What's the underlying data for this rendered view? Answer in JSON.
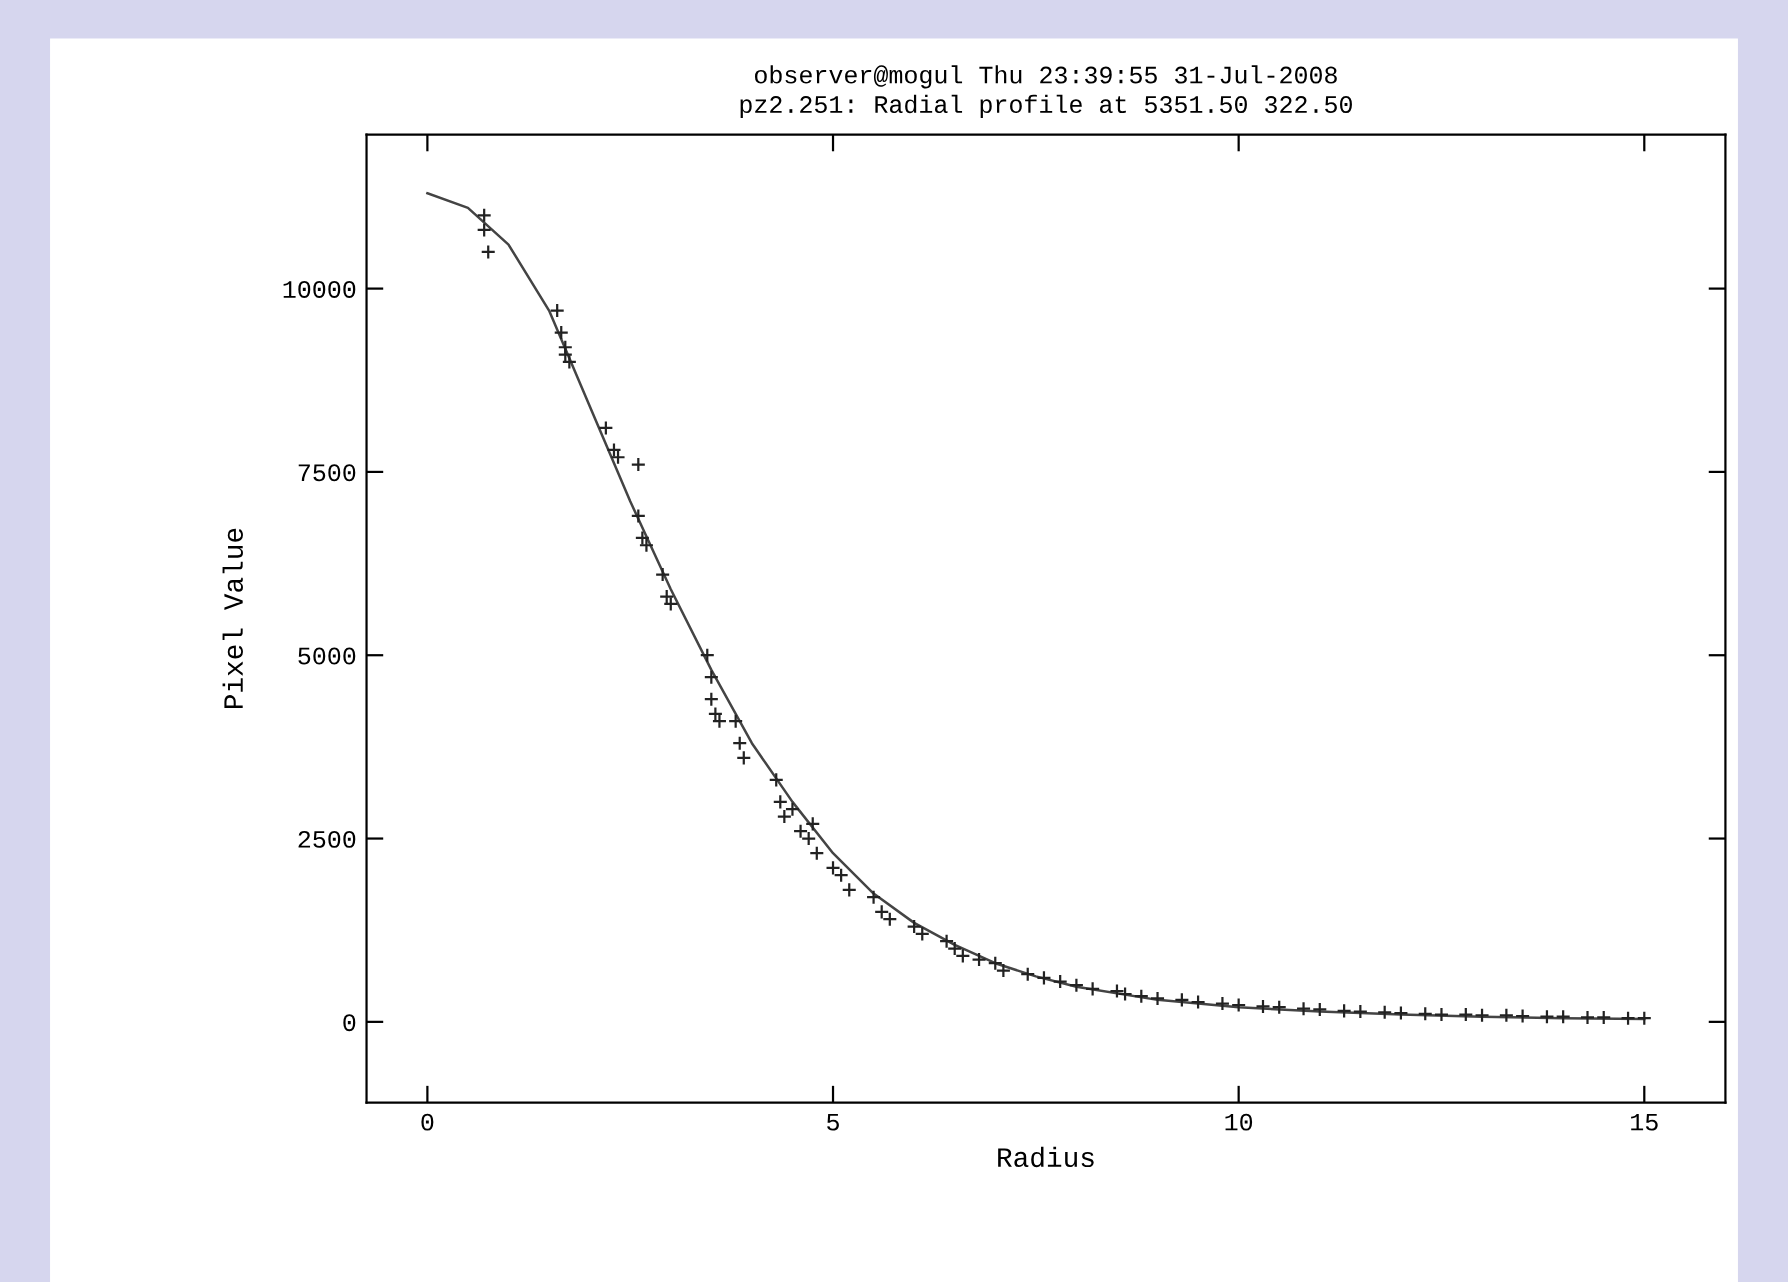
{
  "chart_data": {
    "type": "scatter",
    "title": "observer@mogul Thu 23:39:55 31-Jul-2008",
    "subtitle": "pz2.251: Radial profile at 5351.50 322.50",
    "xlabel": "Radius",
    "ylabel": "Pixel Value",
    "xlim": [
      -0.75,
      16
    ],
    "ylim": [
      -1100,
      12100
    ],
    "xticks": [
      0,
      5,
      10,
      15
    ],
    "yticks": [
      0,
      2500,
      5000,
      7500,
      10000
    ],
    "grid": false,
    "legend": false,
    "series": [
      {
        "marker": "cross",
        "color": "#222222",
        "x": [
          0.7,
          0.7,
          0.75,
          1.6,
          1.65,
          1.7,
          1.7,
          1.75,
          2.2,
          2.3,
          2.35,
          2.6,
          2.6,
          2.65,
          2.7,
          2.9,
          2.95,
          3.0,
          3.45,
          3.5,
          3.5,
          3.55,
          3.6,
          3.8,
          3.85,
          3.9,
          4.3,
          4.35,
          4.4,
          4.5,
          4.6,
          4.7,
          4.75,
          4.8,
          5.0,
          5.1,
          5.2,
          5.5,
          5.6,
          5.7,
          6.0,
          6.1,
          6.4,
          6.5,
          6.6,
          6.8,
          7.0,
          7.1,
          7.4,
          7.6,
          7.8,
          8.0,
          8.2,
          8.5,
          8.6,
          8.8,
          9.0,
          9.3,
          9.5,
          9.8,
          10.0,
          10.3,
          10.5,
          10.8,
          11.0,
          11.3,
          11.5,
          11.8,
          12.0,
          12.3,
          12.5,
          12.8,
          13.0,
          13.3,
          13.5,
          13.8,
          14.0,
          14.3,
          14.5,
          14.8,
          15.0
        ],
        "values": [
          11000,
          10800,
          10500,
          9700,
          9400,
          9200,
          9100,
          9000,
          8100,
          7800,
          7700,
          7600,
          6900,
          6600,
          6500,
          6100,
          5800,
          5700,
          5000,
          4700,
          4400,
          4200,
          4100,
          4100,
          3800,
          3600,
          3300,
          3000,
          2800,
          2900,
          2600,
          2500,
          2700,
          2300,
          2100,
          2000,
          1800,
          1700,
          1500,
          1400,
          1300,
          1200,
          1100,
          1000,
          900,
          850,
          800,
          700,
          650,
          600,
          550,
          500,
          450,
          420,
          380,
          350,
          320,
          300,
          270,
          250,
          230,
          210,
          200,
          180,
          170,
          150,
          140,
          130,
          120,
          110,
          100,
          100,
          90,
          90,
          80,
          70,
          70,
          60,
          60,
          50,
          50
        ]
      },
      {
        "type": "line",
        "line_style": "solid",
        "color": "#444444",
        "x": [
          0,
          0.5,
          1,
          1.5,
          2,
          2.5,
          3,
          3.5,
          4,
          4.5,
          5,
          5.5,
          6,
          6.5,
          7,
          7.5,
          8,
          9,
          10,
          11,
          12,
          13,
          14,
          15
        ],
        "values": [
          11300,
          11100,
          10600,
          9700,
          8400,
          7100,
          5900,
          4800,
          3800,
          3000,
          2300,
          1750,
          1350,
          1050,
          800,
          620,
          480,
          300,
          200,
          140,
          100,
          70,
          50,
          40
        ]
      }
    ]
  }
}
